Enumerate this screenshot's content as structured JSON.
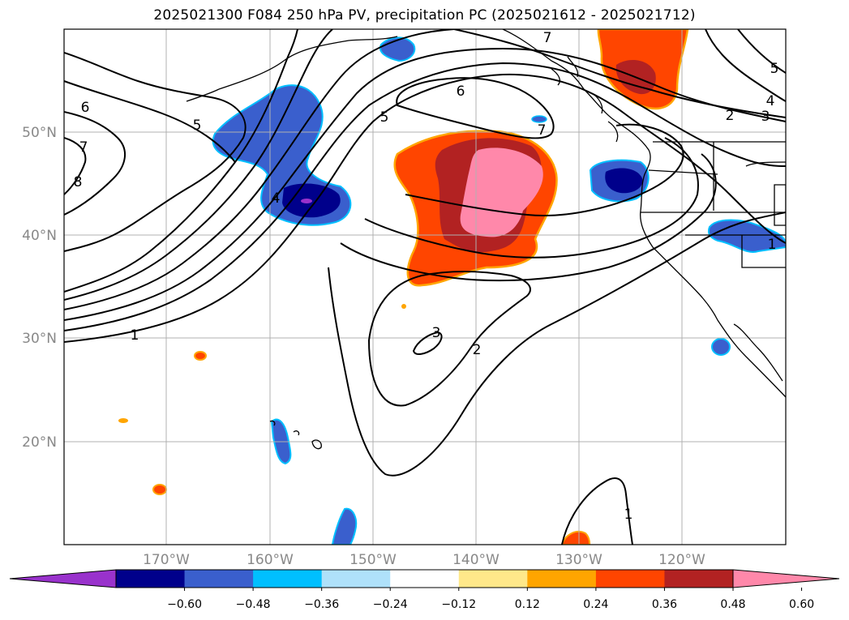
{
  "title": "2025021300 F084 250 hPa PV, precipitation PC (2025021612 - 2025021712)",
  "map": {
    "lat_labels": [
      "50°N",
      "40°N",
      "30°N",
      "20°N"
    ],
    "lon_labels": [
      "170°W",
      "160°W",
      "150°W",
      "140°W",
      "130°W",
      "120°W"
    ],
    "contour_labels": [
      "1",
      "2",
      "3",
      "4",
      "5",
      "6",
      "7",
      "8"
    ],
    "extent": {
      "lon_min": -180,
      "lon_max": -110,
      "lat_min": 10,
      "lat_max": 60
    }
  },
  "colorbar": {
    "ticks": [
      "−0.60",
      "−0.48",
      "−0.36",
      "−0.24",
      "−0.12",
      "0.12",
      "0.24",
      "0.36",
      "0.48",
      "0.60"
    ],
    "colors": [
      "#9932cc",
      "#00008b",
      "#3a5fcd",
      "#00bfff",
      "#afe1fa",
      "#ffffff",
      "#ffe88a",
      "#ffa500",
      "#ff4500",
      "#b22222",
      "#ff88aa"
    ]
  }
}
